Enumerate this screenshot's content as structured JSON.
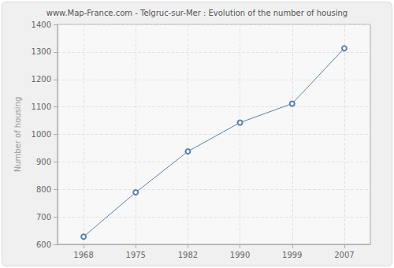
{
  "chart_data": {
    "type": "line",
    "title": "www.Map-France.com - Telgruc-sur-Mer : Evolution of the number of housing",
    "ylabel": "Number of housing",
    "categories": [
      "1968",
      "1975",
      "1982",
      "1990",
      "1999",
      "2007"
    ],
    "values": [
      628,
      789,
      938,
      1043,
      1112,
      1313
    ],
    "color": "#5b80a8",
    "marker": "circle",
    "ylim": [
      600,
      1400
    ],
    "yticks": [
      600,
      700,
      800,
      900,
      1000,
      1100,
      1200,
      1300,
      1400
    ],
    "grid": true
  }
}
